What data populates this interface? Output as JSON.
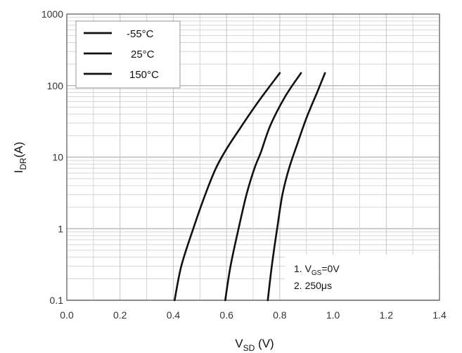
{
  "chart_data": {
    "type": "line",
    "x_scale": "linear",
    "y_scale": "log",
    "xlim": [
      0.0,
      1.4
    ],
    "ylim": [
      0.1,
      1000
    ],
    "grid": true,
    "x_ticks": [
      "0.0",
      "0.2",
      "0.4",
      "0.6",
      "0.8",
      "1.0",
      "1.2",
      "1.4"
    ],
    "y_ticks": [
      "0.1",
      "1",
      "10",
      "100",
      "1000"
    ],
    "xlabel": {
      "main": "V",
      "sub": "SD",
      "tail": " (V)"
    },
    "ylabel": {
      "main": "I",
      "sub": "DR",
      "tail": "(A)"
    },
    "legend_position": "top-left",
    "series": [
      {
        "name": "-55°C",
        "x": [
          0.755,
          0.77,
          0.79,
          0.81,
          0.835,
          0.865,
          0.9,
          0.94,
          0.97
        ],
        "y": [
          0.1,
          0.3,
          1,
          3,
          7,
          15,
          35,
          80,
          150
        ]
      },
      {
        "name": "25°C",
        "x": [
          0.595,
          0.615,
          0.645,
          0.675,
          0.705,
          0.73,
          0.765,
          0.82,
          0.88
        ],
        "y": [
          0.1,
          0.3,
          1,
          3,
          7,
          12,
          28,
          70,
          150
        ]
      },
      {
        "name": "150°C",
        "x": [
          0.405,
          0.43,
          0.475,
          0.52,
          0.56,
          0.6,
          0.65,
          0.72,
          0.8
        ],
        "y": [
          0.1,
          0.3,
          1,
          3,
          7,
          13,
          25,
          60,
          150
        ]
      }
    ],
    "line_color": "#111111",
    "notes": [
      {
        "prefix": "1. V",
        "sub": "GS",
        "suffix": "=0V"
      },
      {
        "prefix": "2. 250μs",
        "sub": "",
        "suffix": ""
      }
    ]
  }
}
